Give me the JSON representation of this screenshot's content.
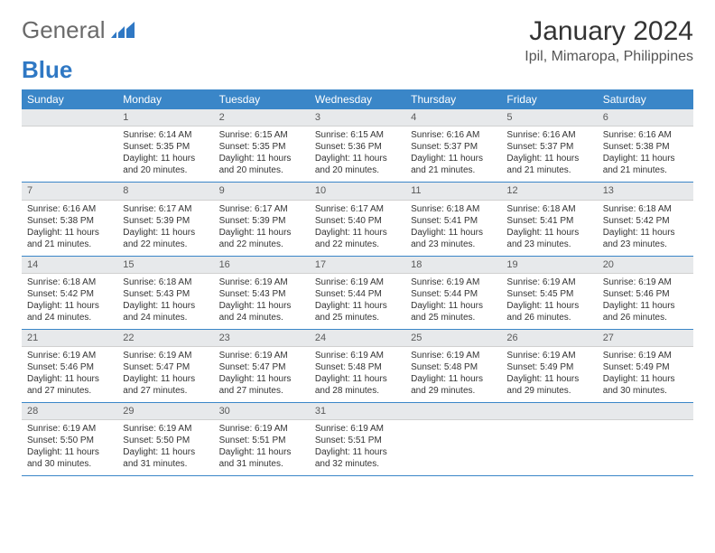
{
  "logo": {
    "word1": "General",
    "word2": "Blue"
  },
  "title": "January 2024",
  "location": "Ipil, Mimaropa, Philippines",
  "colors": {
    "header_bg": "#3a86c8",
    "header_text": "#ffffff",
    "daynum_bg": "#e7e9eb",
    "row_border": "#3a86c8",
    "logo_gray": "#6a6a6a",
    "logo_blue": "#2f78c4"
  },
  "weekdays": [
    "Sunday",
    "Monday",
    "Tuesday",
    "Wednesday",
    "Thursday",
    "Friday",
    "Saturday"
  ],
  "weeks": [
    [
      {
        "num": "",
        "sunrise": "",
        "sunset": "",
        "daylight": ""
      },
      {
        "num": "1",
        "sunrise": "Sunrise: 6:14 AM",
        "sunset": "Sunset: 5:35 PM",
        "daylight": "Daylight: 11 hours and 20 minutes."
      },
      {
        "num": "2",
        "sunrise": "Sunrise: 6:15 AM",
        "sunset": "Sunset: 5:35 PM",
        "daylight": "Daylight: 11 hours and 20 minutes."
      },
      {
        "num": "3",
        "sunrise": "Sunrise: 6:15 AM",
        "sunset": "Sunset: 5:36 PM",
        "daylight": "Daylight: 11 hours and 20 minutes."
      },
      {
        "num": "4",
        "sunrise": "Sunrise: 6:16 AM",
        "sunset": "Sunset: 5:37 PM",
        "daylight": "Daylight: 11 hours and 21 minutes."
      },
      {
        "num": "5",
        "sunrise": "Sunrise: 6:16 AM",
        "sunset": "Sunset: 5:37 PM",
        "daylight": "Daylight: 11 hours and 21 minutes."
      },
      {
        "num": "6",
        "sunrise": "Sunrise: 6:16 AM",
        "sunset": "Sunset: 5:38 PM",
        "daylight": "Daylight: 11 hours and 21 minutes."
      }
    ],
    [
      {
        "num": "7",
        "sunrise": "Sunrise: 6:16 AM",
        "sunset": "Sunset: 5:38 PM",
        "daylight": "Daylight: 11 hours and 21 minutes."
      },
      {
        "num": "8",
        "sunrise": "Sunrise: 6:17 AM",
        "sunset": "Sunset: 5:39 PM",
        "daylight": "Daylight: 11 hours and 22 minutes."
      },
      {
        "num": "9",
        "sunrise": "Sunrise: 6:17 AM",
        "sunset": "Sunset: 5:39 PM",
        "daylight": "Daylight: 11 hours and 22 minutes."
      },
      {
        "num": "10",
        "sunrise": "Sunrise: 6:17 AM",
        "sunset": "Sunset: 5:40 PM",
        "daylight": "Daylight: 11 hours and 22 minutes."
      },
      {
        "num": "11",
        "sunrise": "Sunrise: 6:18 AM",
        "sunset": "Sunset: 5:41 PM",
        "daylight": "Daylight: 11 hours and 23 minutes."
      },
      {
        "num": "12",
        "sunrise": "Sunrise: 6:18 AM",
        "sunset": "Sunset: 5:41 PM",
        "daylight": "Daylight: 11 hours and 23 minutes."
      },
      {
        "num": "13",
        "sunrise": "Sunrise: 6:18 AM",
        "sunset": "Sunset: 5:42 PM",
        "daylight": "Daylight: 11 hours and 23 minutes."
      }
    ],
    [
      {
        "num": "14",
        "sunrise": "Sunrise: 6:18 AM",
        "sunset": "Sunset: 5:42 PM",
        "daylight": "Daylight: 11 hours and 24 minutes."
      },
      {
        "num": "15",
        "sunrise": "Sunrise: 6:18 AM",
        "sunset": "Sunset: 5:43 PM",
        "daylight": "Daylight: 11 hours and 24 minutes."
      },
      {
        "num": "16",
        "sunrise": "Sunrise: 6:19 AM",
        "sunset": "Sunset: 5:43 PM",
        "daylight": "Daylight: 11 hours and 24 minutes."
      },
      {
        "num": "17",
        "sunrise": "Sunrise: 6:19 AM",
        "sunset": "Sunset: 5:44 PM",
        "daylight": "Daylight: 11 hours and 25 minutes."
      },
      {
        "num": "18",
        "sunrise": "Sunrise: 6:19 AM",
        "sunset": "Sunset: 5:44 PM",
        "daylight": "Daylight: 11 hours and 25 minutes."
      },
      {
        "num": "19",
        "sunrise": "Sunrise: 6:19 AM",
        "sunset": "Sunset: 5:45 PM",
        "daylight": "Daylight: 11 hours and 26 minutes."
      },
      {
        "num": "20",
        "sunrise": "Sunrise: 6:19 AM",
        "sunset": "Sunset: 5:46 PM",
        "daylight": "Daylight: 11 hours and 26 minutes."
      }
    ],
    [
      {
        "num": "21",
        "sunrise": "Sunrise: 6:19 AM",
        "sunset": "Sunset: 5:46 PM",
        "daylight": "Daylight: 11 hours and 27 minutes."
      },
      {
        "num": "22",
        "sunrise": "Sunrise: 6:19 AM",
        "sunset": "Sunset: 5:47 PM",
        "daylight": "Daylight: 11 hours and 27 minutes."
      },
      {
        "num": "23",
        "sunrise": "Sunrise: 6:19 AM",
        "sunset": "Sunset: 5:47 PM",
        "daylight": "Daylight: 11 hours and 27 minutes."
      },
      {
        "num": "24",
        "sunrise": "Sunrise: 6:19 AM",
        "sunset": "Sunset: 5:48 PM",
        "daylight": "Daylight: 11 hours and 28 minutes."
      },
      {
        "num": "25",
        "sunrise": "Sunrise: 6:19 AM",
        "sunset": "Sunset: 5:48 PM",
        "daylight": "Daylight: 11 hours and 29 minutes."
      },
      {
        "num": "26",
        "sunrise": "Sunrise: 6:19 AM",
        "sunset": "Sunset: 5:49 PM",
        "daylight": "Daylight: 11 hours and 29 minutes."
      },
      {
        "num": "27",
        "sunrise": "Sunrise: 6:19 AM",
        "sunset": "Sunset: 5:49 PM",
        "daylight": "Daylight: 11 hours and 30 minutes."
      }
    ],
    [
      {
        "num": "28",
        "sunrise": "Sunrise: 6:19 AM",
        "sunset": "Sunset: 5:50 PM",
        "daylight": "Daylight: 11 hours and 30 minutes."
      },
      {
        "num": "29",
        "sunrise": "Sunrise: 6:19 AM",
        "sunset": "Sunset: 5:50 PM",
        "daylight": "Daylight: 11 hours and 31 minutes."
      },
      {
        "num": "30",
        "sunrise": "Sunrise: 6:19 AM",
        "sunset": "Sunset: 5:51 PM",
        "daylight": "Daylight: 11 hours and 31 minutes."
      },
      {
        "num": "31",
        "sunrise": "Sunrise: 6:19 AM",
        "sunset": "Sunset: 5:51 PM",
        "daylight": "Daylight: 11 hours and 32 minutes."
      },
      {
        "num": "",
        "sunrise": "",
        "sunset": "",
        "daylight": ""
      },
      {
        "num": "",
        "sunrise": "",
        "sunset": "",
        "daylight": ""
      },
      {
        "num": "",
        "sunrise": "",
        "sunset": "",
        "daylight": ""
      }
    ]
  ]
}
